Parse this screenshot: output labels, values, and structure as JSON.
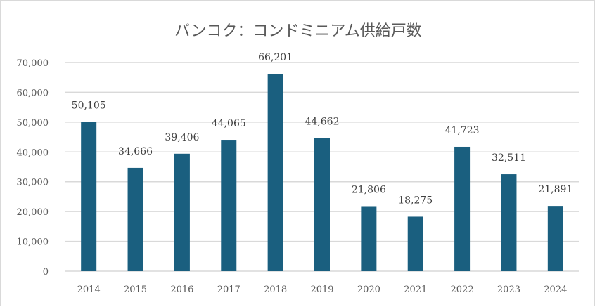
{
  "chart_data": {
    "type": "bar",
    "title": "バンコク：コンドミニアム供給戸数",
    "categories": [
      "2014",
      "2015",
      "2016",
      "2017",
      "2018",
      "2019",
      "2020",
      "2021",
      "2022",
      "2023",
      "2024"
    ],
    "values": [
      50105,
      34666,
      39406,
      44065,
      66201,
      44662,
      21806,
      18275,
      41723,
      32511,
      21891
    ],
    "data_labels": [
      "50,105",
      "34,666",
      "39,406",
      "44,065",
      "66,201",
      "44,662",
      "21,806",
      "18,275",
      "41,723",
      "32,511",
      "21,891"
    ],
    "ylim": [
      0,
      70000
    ],
    "yticks": [
      0,
      10000,
      20000,
      30000,
      40000,
      50000,
      60000,
      70000
    ],
    "ytick_labels": [
      "0",
      "10,000",
      "20,000",
      "30,000",
      "40,000",
      "50,000",
      "60,000",
      "70,000"
    ],
    "grid": true,
    "legend": "none",
    "colors": {
      "bar": "#1a5f7f",
      "grid": "#d9d9d9"
    }
  }
}
